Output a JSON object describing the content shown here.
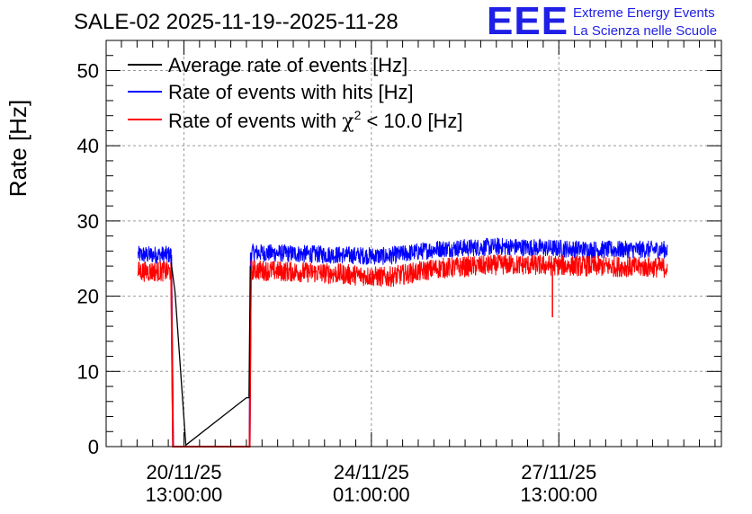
{
  "chart_data": {
    "type": "line",
    "title": "SALE-02 2025-11-19--2025-11-28",
    "ylabel": "Rate [Hz]",
    "xlabel": "",
    "ylim": [
      0,
      54
    ],
    "yticks": [
      0,
      10,
      20,
      30,
      40,
      50
    ],
    "xlim_days": [
      0,
      9.65
    ],
    "x_ticks": [
      {
        "day": 1.22,
        "line1": "20/11/25",
        "line2": "13:00:00"
      },
      {
        "day": 4.16,
        "line1": "24/11/25",
        "line2": "01:00:00"
      },
      {
        "day": 7.1,
        "line1": "27/11/25",
        "line2": "13:00:00"
      }
    ],
    "grid": true,
    "legend_position": "top-left",
    "legend": [
      {
        "label": "Average rate of events [Hz]",
        "color": "#000000"
      },
      {
        "label": "Rate of events with hits [Hz]",
        "color": "#0000ff"
      },
      {
        "label_prefix": "Rate of events with ",
        "label_symbol": "χ",
        "label_sup": "2",
        "label_suffix": " < 10.0 [Hz]",
        "color": "#ff0000"
      }
    ],
    "series": [
      {
        "name": "Average rate of events [Hz]",
        "color": "#000000",
        "points": [
          [
            0.5,
            24.5
          ],
          [
            1.02,
            24.5
          ],
          [
            1.08,
            20.5
          ],
          [
            1.25,
            0.2
          ],
          [
            2.2,
            6.5
          ],
          [
            2.24,
            6.5
          ],
          [
            2.26,
            24.0
          ],
          [
            8.8,
            24.5
          ]
        ]
      },
      {
        "name": "Rate of events with hits [Hz]",
        "color": "#0000ff",
        "segments": [
          {
            "start": 0.5,
            "end": 1.02,
            "base": [
              [
                0.5,
                25.5
              ],
              [
                1.02,
                25.5
              ]
            ],
            "noise": 1.2
          },
          {
            "start": 2.27,
            "end": 8.8,
            "base": [
              [
                2.27,
                25.8
              ],
              [
                3.6,
                25.5
              ],
              [
                4.4,
                25.3
              ],
              [
                5.2,
                26.3
              ],
              [
                6.2,
                26.6
              ],
              [
                7.6,
                26.2
              ],
              [
                8.8,
                26.2
              ]
            ],
            "noise": 1.2
          }
        ],
        "zero_range": [
          1.05,
          2.25
        ]
      },
      {
        "name": "Rate of events with χ2 < 10.0 [Hz]",
        "color": "#ff0000",
        "segments": [
          {
            "start": 0.5,
            "end": 1.02,
            "base": [
              [
                0.5,
                23.3
              ],
              [
                1.02,
                23.3
              ]
            ],
            "noise": 1.4
          },
          {
            "start": 2.27,
            "end": 8.8,
            "base": [
              [
                2.27,
                23.5
              ],
              [
                3.6,
                23.0
              ],
              [
                4.4,
                22.5
              ],
              [
                5.2,
                23.7
              ],
              [
                6.2,
                24.2
              ],
              [
                7.6,
                24.0
              ],
              [
                8.8,
                23.8
              ]
            ],
            "noise": 1.4
          }
        ],
        "zero_range": [
          1.05,
          2.25
        ],
        "spike": {
          "day": 7.0,
          "value": 17.2
        }
      }
    ]
  },
  "logo": {
    "letters": "EEE",
    "line1": "Extreme Energy Events",
    "line2": "La Scienza nelle Scuole"
  }
}
